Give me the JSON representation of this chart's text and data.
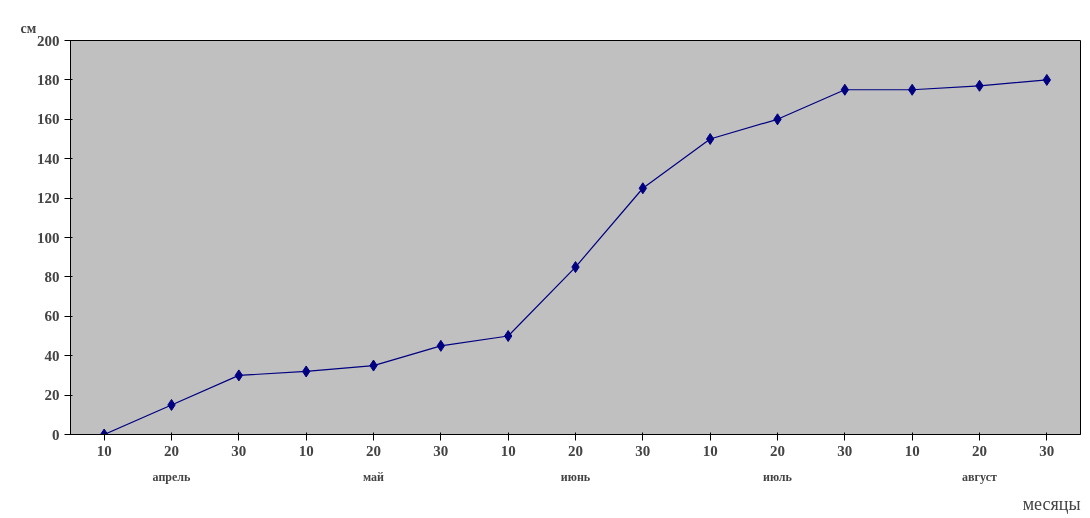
{
  "chart_data": {
    "type": "line",
    "ylabel": "см",
    "xlabel": "месяцы",
    "categories": [
      "10",
      "20",
      "30",
      "10",
      "20",
      "30",
      "10",
      "20",
      "30",
      "10",
      "20",
      "30",
      "10",
      "20",
      "30"
    ],
    "series": [
      {
        "color": "#000080",
        "values": [
          0,
          15,
          30,
          32,
          35,
          45,
          50,
          85,
          125,
          150,
          160,
          175,
          175,
          177,
          180
        ]
      }
    ],
    "ylim": [
      0,
      200
    ],
    "yticks": [
      0,
      20,
      40,
      60,
      80,
      100,
      120,
      140,
      160,
      180,
      200
    ],
    "annotations": [
      "апрель",
      "май",
      "июнь",
      "июль",
      "август"
    ],
    "marker": "diamond",
    "grid": false
  }
}
